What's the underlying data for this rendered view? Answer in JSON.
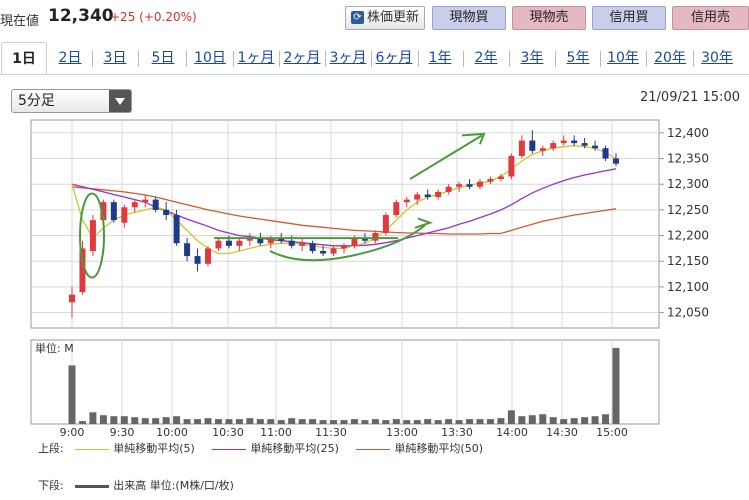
{
  "header": {
    "price_label": "現在値",
    "price_value": "12,340",
    "price_change": "+25 (+0.20%)",
    "update_button": "株価更新",
    "update_icon": "refresh-icon",
    "buttons": [
      "現物買",
      "現物売",
      "信用買",
      "信用売"
    ]
  },
  "tabs": [
    "1日",
    "2日",
    "3日",
    "5日",
    "10日",
    "1ヶ月",
    "2ヶ月",
    "3ヶ月",
    "6ヶ月",
    "1年",
    "2年",
    "3年",
    "5年",
    "10年",
    "20年",
    "30年"
  ],
  "active_tab": "1日",
  "interval_select": {
    "value": "5分足"
  },
  "datetime": "21/09/21 15:00",
  "chart_data": {
    "type": "candlestick",
    "price_ticks": [
      "12,400",
      "12,350",
      "12,300",
      "12,250",
      "12,200",
      "12,150",
      "12,100",
      "12,050"
    ],
    "price_tick_values": [
      12400,
      12350,
      12300,
      12250,
      12200,
      12150,
      12100,
      12050
    ],
    "ylim": [
      12020,
      12425
    ],
    "time_labels": [
      "9:00",
      "9:30",
      "10:00",
      "10:30",
      "11:00",
      "11:30",
      "13:00",
      "13:30",
      "14:00",
      "14:30",
      "15:00"
    ],
    "volume_unit_label": "単位: M",
    "ohlc": [
      [
        12070,
        12100,
        12040,
        12085
      ],
      [
        12090,
        12190,
        12085,
        12175
      ],
      [
        12170,
        12240,
        12160,
        12230
      ],
      [
        12230,
        12270,
        12225,
        12265
      ],
      [
        12265,
        12270,
        12225,
        12230
      ],
      [
        12225,
        12260,
        12215,
        12255
      ],
      [
        12255,
        12270,
        12245,
        12265
      ],
      [
        12265,
        12280,
        12255,
        12270
      ],
      [
        12270,
        12275,
        12245,
        12250
      ],
      [
        12250,
        12265,
        12230,
        12240
      ],
      [
        12240,
        12250,
        12180,
        12185
      ],
      [
        12185,
        12195,
        12150,
        12160
      ],
      [
        12160,
        12175,
        12130,
        12145
      ],
      [
        12145,
        12180,
        12140,
        12175
      ],
      [
        12175,
        12195,
        12170,
        12190
      ],
      [
        12190,
        12200,
        12175,
        12180
      ],
      [
        12180,
        12195,
        12170,
        12190
      ],
      [
        12190,
        12205,
        12180,
        12195
      ],
      [
        12195,
        12205,
        12180,
        12185
      ],
      [
        12185,
        12200,
        12175,
        12195
      ],
      [
        12195,
        12205,
        12185,
        12190
      ],
      [
        12190,
        12200,
        12175,
        12180
      ],
      [
        12180,
        12195,
        12170,
        12185
      ],
      [
        12185,
        12190,
        12165,
        12170
      ],
      [
        12170,
        12180,
        12160,
        12165
      ],
      [
        12165,
        12180,
        12160,
        12175
      ],
      [
        12175,
        12185,
        12165,
        12180
      ],
      [
        12180,
        12200,
        12175,
        12195
      ],
      [
        12195,
        12205,
        12185,
        12190
      ],
      [
        12190,
        12210,
        12185,
        12205
      ],
      [
        12205,
        12245,
        12200,
        12240
      ],
      [
        12240,
        12270,
        12235,
        12265
      ],
      [
        12265,
        12275,
        12255,
        12270
      ],
      [
        12270,
        12285,
        12260,
        12280
      ],
      [
        12280,
        12290,
        12270,
        12275
      ],
      [
        12275,
        12290,
        12270,
        12285
      ],
      [
        12285,
        12300,
        12280,
        12295
      ],
      [
        12295,
        12305,
        12285,
        12300
      ],
      [
        12300,
        12310,
        12290,
        12295
      ],
      [
        12295,
        12310,
        12290,
        12305
      ],
      [
        12305,
        12315,
        12300,
        12310
      ],
      [
        12310,
        12320,
        12305,
        12315
      ],
      [
        12315,
        12360,
        12310,
        12355
      ],
      [
        12355,
        12395,
        12350,
        12385
      ],
      [
        12385,
        12405,
        12360,
        12365
      ],
      [
        12365,
        12375,
        12355,
        12370
      ],
      [
        12370,
        12385,
        12365,
        12380
      ],
      [
        12380,
        12395,
        12375,
        12385
      ],
      [
        12385,
        12395,
        12375,
        12380
      ],
      [
        12380,
        12390,
        12370,
        12375
      ],
      [
        12375,
        12385,
        12365,
        12370
      ],
      [
        12370,
        12375,
        12345,
        12350
      ],
      [
        12350,
        12360,
        12335,
        12340
      ]
    ],
    "ma5": [
      12300,
      12230,
      12195,
      12215,
      12230,
      12240,
      12245,
      12250,
      12255,
      12250,
      12230,
      12210,
      12190,
      12175,
      12165,
      12165,
      12170,
      12175,
      12180,
      12183,
      12185,
      12185,
      12183,
      12180,
      12177,
      12175,
      12175,
      12180,
      12185,
      12195,
      12210,
      12230,
      12250,
      12265,
      12275,
      12280,
      12287,
      12293,
      12298,
      12302,
      12306,
      12315,
      12330,
      12345,
      12358,
      12365,
      12370,
      12373,
      12375,
      12373,
      12370,
      12362,
      12350
    ],
    "ma25": [
      12300,
      12295,
      12290,
      12285,
      12280,
      12275,
      12270,
      12265,
      12255,
      12248,
      12240,
      12232,
      12225,
      12218,
      12210,
      12205,
      12200,
      12198,
      12195,
      12192,
      12190,
      12188,
      12186,
      12184,
      12182,
      12180,
      12180,
      12180,
      12181,
      12183,
      12186,
      12190,
      12195,
      12200,
      12205,
      12210,
      12215,
      12222,
      12228,
      12235,
      12242,
      12250,
      12260,
      12272,
      12283,
      12292,
      12300,
      12307,
      12313,
      12318,
      12322,
      12326,
      12330
    ],
    "ma50": [
      12295,
      12293,
      12291,
      12289,
      12287,
      12285,
      12282,
      12279,
      12275,
      12270,
      12265,
      12260,
      12255,
      12250,
      12246,
      12242,
      12238,
      12235,
      12232,
      12229,
      12226,
      12223,
      12220,
      12218,
      12216,
      12214,
      12212,
      12210,
      12209,
      12208,
      12207,
      12206,
      12205,
      12205,
      12204,
      12204,
      12203,
      12203,
      12203,
      12203,
      12204,
      12204,
      12210,
      12216,
      12222,
      12228,
      12232,
      12236,
      12240,
      12243,
      12246,
      12249,
      12252
    ],
    "volume": [
      60,
      3,
      12,
      9,
      8,
      8,
      7,
      6,
      6,
      7,
      8,
      5,
      5,
      6,
      5,
      5,
      5,
      6,
      5,
      5,
      4,
      6,
      5,
      5,
      4,
      4,
      4,
      5,
      4,
      5,
      4,
      5,
      4,
      4,
      5,
      4,
      5,
      4,
      5,
      5,
      5,
      6,
      14,
      8,
      9,
      10,
      7,
      5,
      6,
      7,
      8,
      10,
      78
    ],
    "legend": {
      "upper_label": "上段:",
      "lower_label": "下段:",
      "ma5": {
        "label": "単純移動平均(5)",
        "color": "#c8c832"
      },
      "ma25": {
        "label": "単純移動平均(25)",
        "color": "#9932c8"
      },
      "ma50": {
        "label": "単純移動平均(50)",
        "color": "#d25a32"
      },
      "volume": {
        "label": "出来高 単位:(M株/口/枚)",
        "color": "#555555"
      }
    },
    "colors": {
      "up": "#e0393e",
      "down": "#1f3a8a",
      "annotation": "#4a9a3a",
      "volume": "#666666"
    }
  }
}
